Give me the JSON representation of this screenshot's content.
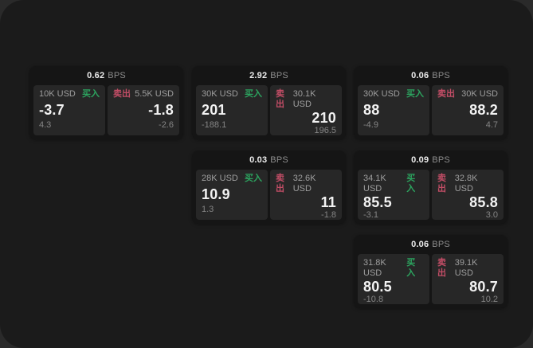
{
  "window": {
    "background": "#1b1b1b",
    "outer_background": "#2a2a2a"
  },
  "labels": {
    "bps": "BPS",
    "buy": "买入",
    "sell": "卖出"
  },
  "colors": {
    "buy_green": "#2ca45f",
    "sell_red": "#c24d66",
    "card_background": "#151515",
    "panel_background": "#272727"
  },
  "cards": [
    {
      "col": 0,
      "row": 0,
      "bps": "0.62",
      "buy": {
        "size": "10K USD",
        "price": "-3.7",
        "change": "4.3"
      },
      "sell": {
        "size": "5.5K USD",
        "price": "-1.8",
        "change": "-2.6"
      }
    },
    {
      "col": 1,
      "row": 0,
      "bps": "2.92",
      "buy": {
        "size": "30K USD",
        "price": "201",
        "change": "-188.1"
      },
      "sell": {
        "size": "30.1K USD",
        "price": "210",
        "change": "196.5"
      }
    },
    {
      "col": 2,
      "row": 0,
      "bps": "0.06",
      "buy": {
        "size": "30K USD",
        "price": "88",
        "change": "-4.9"
      },
      "sell": {
        "size": "30K USD",
        "price": "88.2",
        "change": "4.7"
      }
    },
    {
      "col": 1,
      "row": 1,
      "bps": "0.03",
      "buy": {
        "size": "28K USD",
        "price": "10.9",
        "change": "1.3"
      },
      "sell": {
        "size": "32.6K USD",
        "price": "11",
        "change": "-1.8"
      }
    },
    {
      "col": 2,
      "row": 1,
      "bps": "0.09",
      "buy": {
        "size": "34.1K USD",
        "price": "85.5",
        "change": "-3.1"
      },
      "sell": {
        "size": "32.8K USD",
        "price": "85.8",
        "change": "3.0"
      }
    },
    {
      "col": 2,
      "row": 2,
      "bps": "0.06",
      "buy": {
        "size": "31.8K USD",
        "price": "80.5",
        "change": "-10.8"
      },
      "sell": {
        "size": "39.1K USD",
        "price": "80.7",
        "change": "10.2"
      }
    }
  ]
}
